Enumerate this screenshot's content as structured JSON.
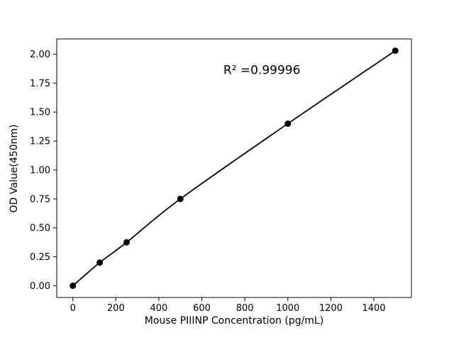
{
  "chart_data": {
    "type": "scatter",
    "title": "",
    "xlabel": "Mouse PIIINP Concentration (pg/mL)",
    "ylabel": "OD Value(450nm)",
    "annotation": "R² =0.99996",
    "annotation_pos": {
      "x": 700,
      "y": 1.83
    },
    "x": [
      0,
      125,
      250,
      500,
      1000,
      1500
    ],
    "y": [
      0.0,
      0.2,
      0.375,
      0.75,
      1.4,
      2.03
    ],
    "xticks": [
      0,
      200,
      400,
      600,
      800,
      1000,
      1200,
      1400
    ],
    "yticks": [
      0.0,
      0.25,
      0.5,
      0.75,
      1.0,
      1.25,
      1.5,
      1.75,
      2.0
    ],
    "xlim": [
      -75,
      1575
    ],
    "ylim": [
      -0.1015,
      2.1315
    ],
    "grid": false,
    "legend": null,
    "line_color": "#000000",
    "marker_color": "#000000",
    "background_color": "#ffffff",
    "fit": "smooth curve through points"
  }
}
